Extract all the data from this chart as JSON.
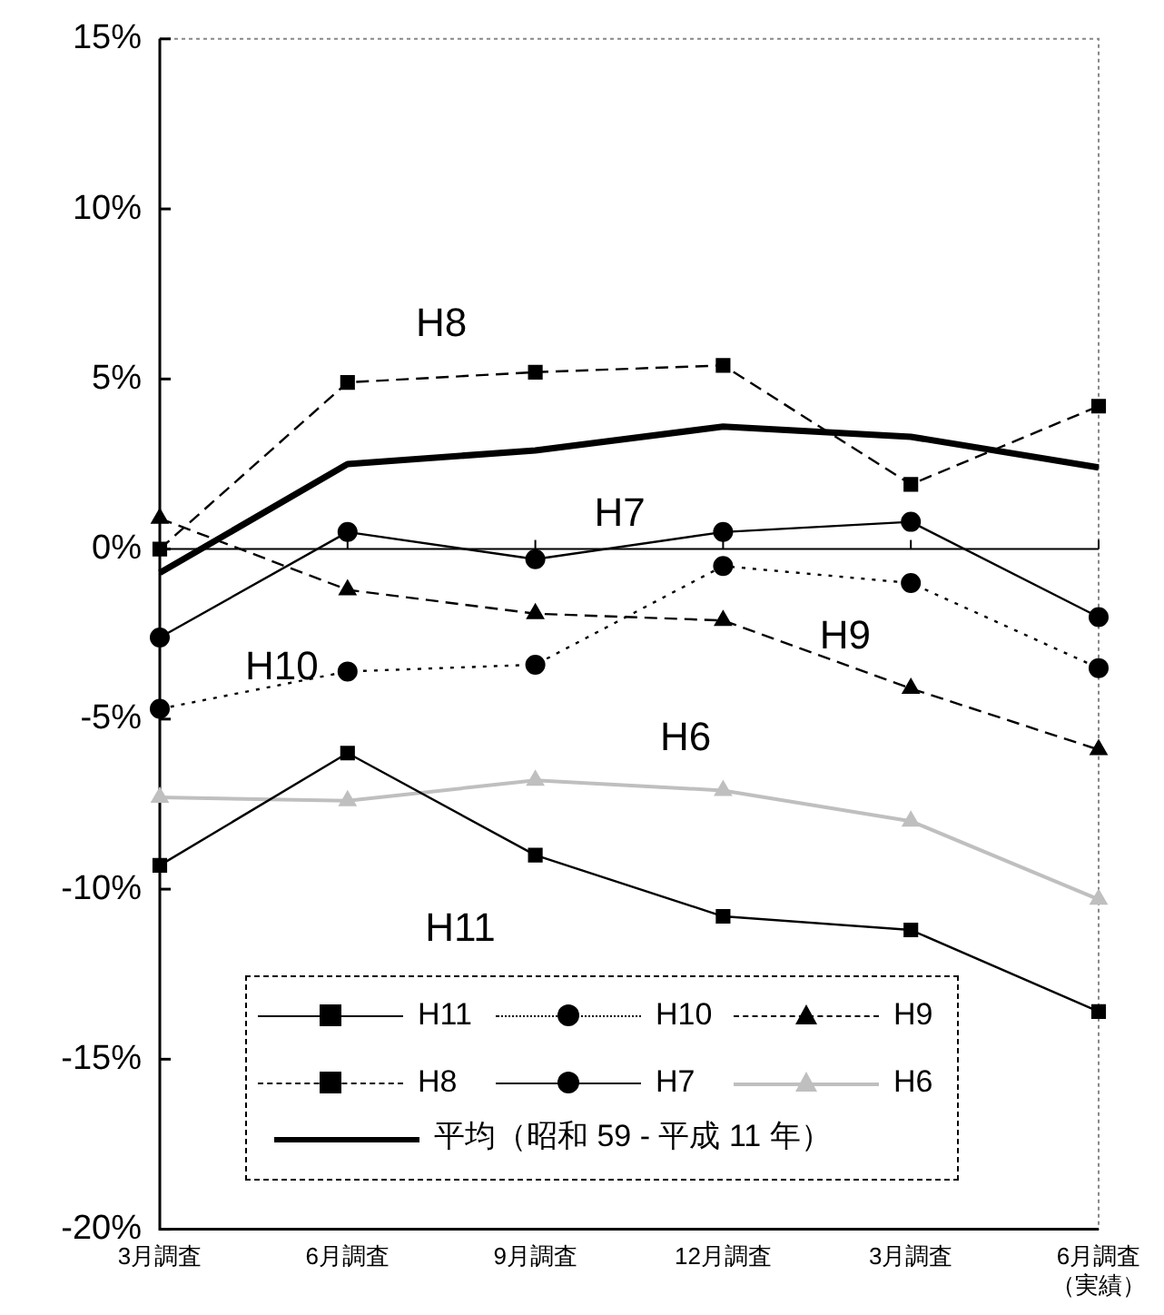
{
  "chart_data": {
    "type": "line",
    "categories": [
      "3月調査",
      "6月調査",
      "9月調査",
      "12月調査",
      "3月調査",
      "6月調査（実績）"
    ],
    "series": [
      {
        "name": "H11",
        "color": "#000000",
        "marker": "square",
        "line_style": "solid",
        "values": [
          -9.3,
          -6.0,
          -9.0,
          -10.8,
          -11.2,
          -13.6
        ]
      },
      {
        "name": "H10",
        "color": "#000000",
        "marker": "circle",
        "line_style": "dotted",
        "values": [
          -4.7,
          -3.6,
          -3.4,
          -0.5,
          -1.0,
          -3.5
        ]
      },
      {
        "name": "H9",
        "color": "#000000",
        "marker": "triangle",
        "line_style": "dashed",
        "values": [
          0.9,
          -1.2,
          -1.9,
          -2.1,
          -4.1,
          -5.9
        ]
      },
      {
        "name": "H8",
        "color": "#000000",
        "marker": "square",
        "line_style": "dashed",
        "values": [
          0.0,
          4.9,
          5.2,
          5.4,
          1.9,
          4.2
        ]
      },
      {
        "name": "H7",
        "color": "#000000",
        "marker": "circle",
        "line_style": "solid",
        "values": [
          -2.6,
          0.5,
          -0.3,
          0.5,
          0.8,
          -2.0
        ]
      },
      {
        "name": "H6",
        "color": "#bfbfbf",
        "marker": "triangle",
        "line_style": "solid",
        "values": [
          -7.3,
          -7.4,
          -6.8,
          -7.1,
          -8.0,
          -10.3
        ]
      },
      {
        "name": "平均（昭和 59 - 平成 11 年）",
        "color": "#000000",
        "marker": "none",
        "line_style": "solid",
        "values": [
          -0.7,
          2.5,
          2.9,
          3.6,
          3.3,
          2.4
        ]
      }
    ],
    "ylim": [
      -20,
      15
    ],
    "yticks": [
      {
        "value": -20,
        "label": "-20%"
      },
      {
        "value": -15,
        "label": "-15%"
      },
      {
        "value": -10,
        "label": "-10%"
      },
      {
        "value": -5,
        "label": "-5%"
      },
      {
        "value": 0,
        "label": "0%"
      },
      {
        "value": 5,
        "label": "5%"
      },
      {
        "value": 10,
        "label": "10%"
      },
      {
        "value": 15,
        "label": "15%"
      }
    ],
    "ref_lines": [
      {
        "axis": "y",
        "value": 0,
        "color": "#000000"
      }
    ],
    "annotations": [
      "H8",
      "H7",
      "H10",
      "H9",
      "H6",
      "H11"
    ],
    "grid": false,
    "legend": "bottom"
  }
}
